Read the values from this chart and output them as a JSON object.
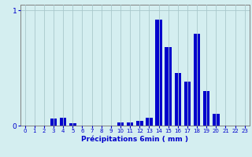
{
  "xlabel": "Précipitations 6min ( mm )",
  "categories": [
    0,
    1,
    2,
    3,
    4,
    5,
    6,
    7,
    8,
    9,
    10,
    11,
    12,
    13,
    14,
    15,
    16,
    17,
    18,
    19,
    20,
    21,
    22,
    23
  ],
  "values": [
    0,
    0,
    0,
    0.06,
    0.07,
    0.02,
    0,
    0,
    0,
    0,
    0.03,
    0.03,
    0.04,
    0.07,
    0.92,
    0.68,
    0.46,
    0.38,
    0.8,
    0.3,
    0.1,
    0,
    0,
    0
  ],
  "bar_color": "#0000cc",
  "bg_color": "#d4eef0",
  "grid_color": "#aac8cc",
  "axis_color": "#808080",
  "text_color": "#0000cc",
  "ylim": [
    0,
    1.05
  ],
  "yticks": [
    0,
    1
  ],
  "xlim": [
    -0.5,
    23.5
  ],
  "figsize": [
    3.2,
    2.0
  ],
  "dpi": 100
}
